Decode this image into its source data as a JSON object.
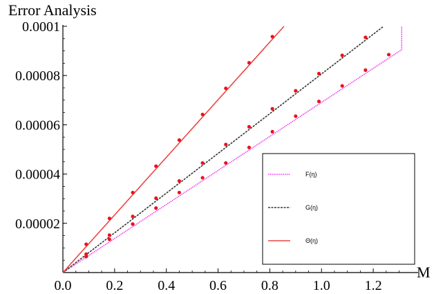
{
  "chart_data": {
    "type": "line",
    "title": "",
    "ylabel": "Error Analysis",
    "xlabel": "M",
    "xlim": [
      0,
      1.32
    ],
    "ylim": [
      0,
      0.0001
    ],
    "xticks": [
      {
        "value": 0.0,
        "label": "0.0"
      },
      {
        "value": 0.2,
        "label": "0.2"
      },
      {
        "value": 0.4,
        "label": "0.4"
      },
      {
        "value": 0.6,
        "label": "0.6"
      },
      {
        "value": 0.8,
        "label": "0.8"
      },
      {
        "value": 1.0,
        "label": "1.0"
      },
      {
        "value": 1.2,
        "label": "1.2"
      }
    ],
    "yticks": [
      {
        "value": 2e-05,
        "label": "0.00002"
      },
      {
        "value": 4e-05,
        "label": "0.00004"
      },
      {
        "value": 6e-05,
        "label": "0.00006"
      },
      {
        "value": 8e-05,
        "label": "0.00008"
      },
      {
        "value": 0.0001,
        "label": "0.0001"
      }
    ],
    "grid": false,
    "legend_position": "bottom-right",
    "marker_color": "#e8141c",
    "series": [
      {
        "name": "F(η)",
        "color": "#ee33ee",
        "dash": "dotted",
        "line": [
          [
            0,
            0
          ],
          [
            1.31,
            9.05e-05
          ],
          [
            1.31,
            0.0001
          ]
        ],
        "points": [
          [
            0.09,
            6.5e-06
          ],
          [
            0.18,
            1.35e-05
          ],
          [
            0.27,
            1.97e-05
          ],
          [
            0.36,
            2.62e-05
          ],
          [
            0.45,
            3.25e-05
          ],
          [
            0.54,
            3.85e-05
          ],
          [
            0.63,
            4.45e-05
          ],
          [
            0.72,
            5.08e-05
          ],
          [
            0.81,
            5.72e-05
          ],
          [
            0.9,
            6.35e-05
          ],
          [
            0.99,
            6.95e-05
          ],
          [
            1.08,
            7.58e-05
          ],
          [
            1.17,
            8.22e-05
          ],
          [
            1.26,
            8.85e-05
          ]
        ]
      },
      {
        "name": "G(η)",
        "color": "#333333",
        "dash": "dashed",
        "line": [
          [
            0,
            0
          ],
          [
            1.24,
            0.0001
          ]
        ],
        "points": [
          [
            0.09,
            7.5e-06
          ],
          [
            0.18,
            1.52e-05
          ],
          [
            0.27,
            2.28e-05
          ],
          [
            0.36,
            3.02e-05
          ],
          [
            0.45,
            3.72e-05
          ],
          [
            0.54,
            4.45e-05
          ],
          [
            0.63,
            5.2e-05
          ],
          [
            0.72,
            5.92e-05
          ],
          [
            0.81,
            6.65e-05
          ],
          [
            0.9,
            7.38e-05
          ],
          [
            0.99,
            8.08e-05
          ],
          [
            1.08,
            8.82e-05
          ],
          [
            1.17,
            9.55e-05
          ]
        ]
      },
      {
        "name": "Θ(η)",
        "color": "#ee4444",
        "dash": "solid",
        "line": [
          [
            0,
            0
          ],
          [
            0.855,
            0.0001
          ]
        ],
        "points": [
          [
            0.09,
            1.15e-05
          ],
          [
            0.18,
            2.2e-05
          ],
          [
            0.27,
            3.25e-05
          ],
          [
            0.36,
            4.32e-05
          ],
          [
            0.45,
            5.38e-05
          ],
          [
            0.54,
            6.42e-05
          ],
          [
            0.63,
            7.48e-05
          ],
          [
            0.72,
            8.52e-05
          ],
          [
            0.81,
            9.58e-05
          ]
        ]
      }
    ]
  }
}
